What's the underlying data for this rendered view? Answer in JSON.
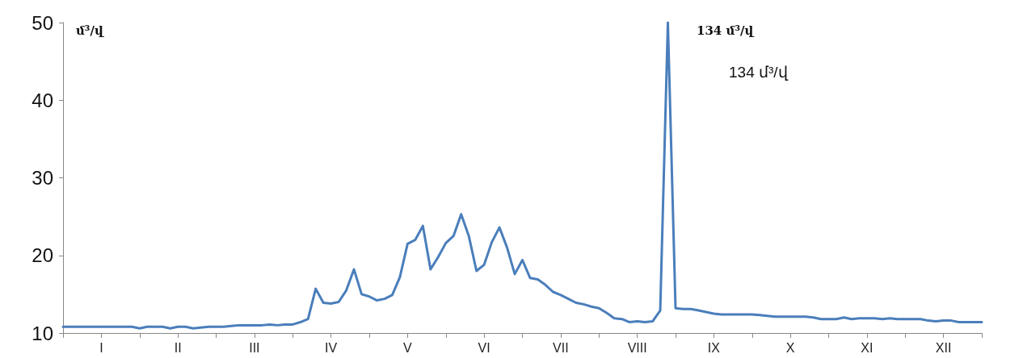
{
  "chart_data": {
    "type": "line",
    "ylabel": "մ³/վ",
    "annotations": [
      "134 մ³/վ",
      "134 մ³/վ"
    ],
    "ylim": [
      10,
      50
    ],
    "yticks": [
      10,
      20,
      30,
      40,
      50
    ],
    "categories": [
      null,
      null,
      null,
      null,
      null,
      "I",
      null,
      null,
      null,
      null,
      null,
      null,
      null,
      null,
      null,
      "II",
      null,
      null,
      null,
      null,
      null,
      null,
      null,
      null,
      null,
      "III",
      null,
      null,
      null,
      null,
      null,
      null,
      null,
      null,
      null,
      "IV",
      null,
      null,
      null,
      null,
      null,
      null,
      null,
      null,
      null,
      "V",
      null,
      null,
      null,
      null,
      null,
      null,
      null,
      null,
      null,
      "VI",
      null,
      null,
      null,
      null,
      null,
      null,
      null,
      null,
      null,
      "VII",
      null,
      null,
      null,
      null,
      null,
      null,
      null,
      null,
      null,
      "VIII",
      null,
      null,
      null,
      null,
      null,
      null,
      null,
      null,
      null,
      "IX",
      null,
      null,
      null,
      null,
      null,
      null,
      null,
      null,
      null,
      "X",
      null,
      null,
      null,
      null,
      null,
      null,
      null,
      null,
      null,
      "XI",
      null,
      null,
      null,
      null,
      null,
      null,
      null,
      null,
      null,
      "XII",
      null,
      null,
      null,
      null,
      null
    ],
    "grid": false,
    "marker": "none",
    "line_style": "solid",
    "series": [
      {
        "color": "#4a7ebb",
        "values": [
          10.8,
          10.8,
          10.8,
          10.8,
          10.8,
          10.8,
          10.8,
          10.8,
          10.8,
          10.8,
          10.6,
          10.8,
          10.8,
          10.8,
          10.6,
          10.8,
          10.8,
          10.6,
          10.7,
          10.8,
          10.8,
          10.8,
          10.9,
          11.0,
          11.0,
          11.0,
          11.0,
          11.1,
          11.0,
          11.1,
          11.1,
          11.4,
          11.8,
          15.7,
          13.9,
          13.8,
          14.0,
          15.5,
          18.2,
          15.0,
          14.7,
          14.2,
          14.4,
          14.9,
          17.2,
          21.5,
          22.0,
          23.8,
          18.2,
          19.8,
          21.6,
          22.5,
          25.3,
          22.5,
          18.0,
          18.8,
          21.7,
          23.6,
          21.0,
          17.6,
          19.4,
          17.1,
          16.9,
          16.2,
          15.3,
          14.9,
          14.4,
          13.9,
          13.7,
          13.4,
          13.2,
          12.6,
          11.9,
          11.8,
          11.4,
          11.5,
          11.4,
          11.5,
          12.9,
          50,
          13.2,
          13.1,
          13.1,
          12.9,
          12.7,
          12.5,
          12.4,
          12.4,
          12.4,
          12.4,
          12.4,
          12.3,
          12.2,
          12.1,
          12.1,
          12.1,
          12.1,
          12.1,
          12.0,
          11.8,
          11.8,
          11.8,
          12.0,
          11.8,
          11.9,
          11.9,
          11.9,
          11.8,
          11.9,
          11.8,
          11.8,
          11.8,
          11.8,
          11.6,
          11.5,
          11.6,
          11.6,
          11.4,
          11.4,
          11.4,
          11.4
        ]
      }
    ]
  }
}
